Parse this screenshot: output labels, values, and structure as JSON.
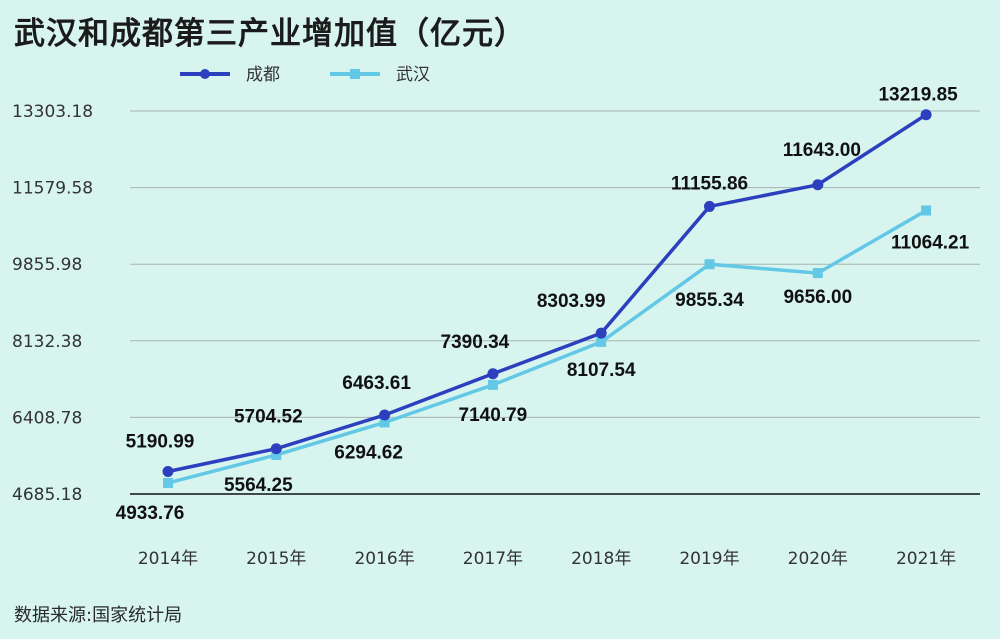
{
  "title": "武汉和成都第三产业增加值（亿元）",
  "source": "数据来源:国家统计局",
  "colors": {
    "background": "#d7f5ee",
    "chengdu": "#2b3fbf",
    "wuhan": "#63c8e6",
    "grid": "#a9b3b0",
    "axis": "#111111"
  },
  "chart_data": {
    "type": "line",
    "title": "武汉和成都第三产业增加值（亿元）",
    "xlabel": "",
    "ylabel": "",
    "categories": [
      "2014年",
      "2015年",
      "2016年",
      "2017年",
      "2018年",
      "2019年",
      "2020年",
      "2021年"
    ],
    "yticks": [
      "13303.18",
      "11579.58",
      "9855.98",
      "8132.38",
      "6408.78",
      "4685.18"
    ],
    "ylim": [
      4685.18,
      13303.18
    ],
    "grid": true,
    "legend": "top-left",
    "series": [
      {
        "name": "成都",
        "marker": "circle",
        "values": [
          5190.99,
          5704.52,
          6463.61,
          7390.34,
          8303.99,
          11155.86,
          11643.0,
          13219.85
        ],
        "labels": [
          "5190.99",
          "5704.52",
          "6463.61",
          "7390.34",
          "8303.99",
          "11155.86",
          "11643.00",
          "13219.85"
        ]
      },
      {
        "name": "武汉",
        "marker": "square",
        "values": [
          4933.76,
          5564.25,
          6294.62,
          7140.79,
          8107.54,
          9855.34,
          9656.0,
          11064.21
        ],
        "labels": [
          "4933.76",
          "5564.25",
          "6294.62",
          "7140.79",
          "8107.54",
          "9855.34",
          "9656.00",
          "11064.21"
        ]
      }
    ]
  }
}
